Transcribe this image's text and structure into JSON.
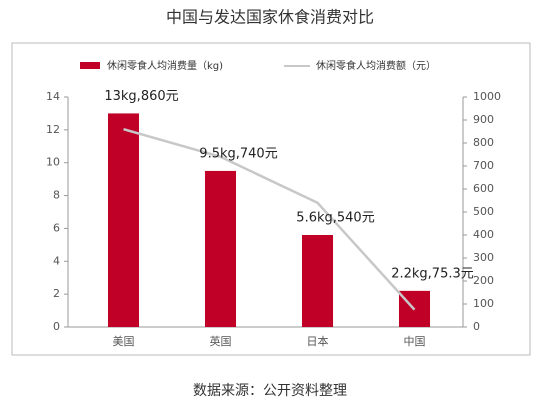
{
  "chart_data": {
    "type": "bar",
    "title": "中国与发达国家休食消费对比",
    "categories": [
      "美国",
      "英国",
      "日本",
      "中国"
    ],
    "series": [
      {
        "name": "休闲零食人均消费量（kg)",
        "color": "#c00027",
        "values": [
          13,
          9.5,
          5.6,
          2.2
        ],
        "type": "bar"
      },
      {
        "name": "休闲零食人均消费额（元）",
        "color": "#c8c8c8",
        "values": [
          860,
          740,
          540,
          75.3
        ],
        "type": "line",
        "axis": "y2"
      }
    ],
    "annotations": [
      "13kg,860元",
      "9.5kg,740元",
      "5.6kg,540元",
      "2.2kg,75.3元"
    ],
    "ylim": [
      0,
      14
    ],
    "yticks": [
      0,
      2,
      4,
      6,
      8,
      10,
      12,
      14
    ],
    "y2lim": [
      0,
      1000
    ],
    "y2ticks": [
      0,
      100,
      200,
      300,
      400,
      500,
      600,
      700,
      800,
      900,
      1000
    ],
    "source": "数据来源：公开资料整理"
  }
}
